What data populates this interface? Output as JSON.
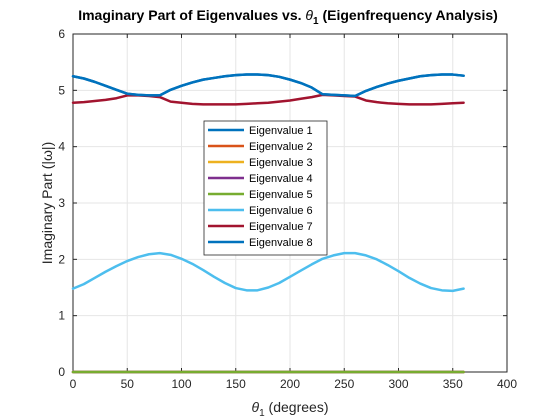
{
  "chart_data": {
    "type": "line",
    "title_main": "Imaginary Part of Eigenvalues vs. ",
    "title_theta": "θ",
    "title_sub": "1",
    "title_end": " (Eigenfrequency Analysis)",
    "xlabel_theta": "θ",
    "xlabel_sub": "1",
    "xlabel_rest": " (degrees)",
    "ylabel": "Imaginary Part (|ω|)",
    "xlim": [
      0,
      400
    ],
    "ylim": [
      0,
      6
    ],
    "xticks": [
      "0",
      "50",
      "100",
      "150",
      "200",
      "250",
      "300",
      "350",
      "400"
    ],
    "yticks": [
      "0",
      "1",
      "2",
      "3",
      "4",
      "5",
      "6"
    ],
    "grid": true,
    "legend_position": "center",
    "x": [
      0,
      10,
      20,
      30,
      40,
      50,
      60,
      70,
      80,
      90,
      100,
      110,
      120,
      130,
      140,
      150,
      160,
      170,
      180,
      190,
      200,
      210,
      220,
      230,
      240,
      250,
      260,
      270,
      280,
      290,
      300,
      310,
      320,
      330,
      340,
      350,
      360
    ],
    "series": [
      {
        "name": "Eigenvalue 1",
        "color": "#0072BD",
        "values": [
          5.25,
          5.21,
          5.15,
          5.08,
          5.01,
          4.94,
          4.92,
          4.91,
          4.91,
          5.01,
          5.08,
          5.14,
          5.19,
          5.22,
          5.25,
          5.27,
          5.28,
          5.28,
          5.27,
          5.24,
          5.19,
          5.13,
          5.05,
          4.93,
          4.92,
          4.91,
          4.9,
          4.99,
          5.06,
          5.12,
          5.17,
          5.21,
          5.25,
          5.27,
          5.28,
          5.28,
          5.26
        ]
      },
      {
        "name": "Eigenvalue 2",
        "color": "#D95319",
        "values": [
          0,
          0,
          0,
          0,
          0,
          0,
          0,
          0,
          0,
          0,
          0,
          0,
          0,
          0,
          0,
          0,
          0,
          0,
          0,
          0,
          0,
          0,
          0,
          0,
          0,
          0,
          0,
          0,
          0,
          0,
          0,
          0,
          0,
          0,
          0,
          0,
          0
        ]
      },
      {
        "name": "Eigenvalue 3",
        "color": "#EDB120",
        "values": [
          0,
          0,
          0,
          0,
          0,
          0,
          0,
          0,
          0,
          0,
          0,
          0,
          0,
          0,
          0,
          0,
          0,
          0,
          0,
          0,
          0,
          0,
          0,
          0,
          0,
          0,
          0,
          0,
          0,
          0,
          0,
          0,
          0,
          0,
          0,
          0,
          0
        ]
      },
      {
        "name": "Eigenvalue 4",
        "color": "#7E2F8E",
        "values": [
          0,
          0,
          0,
          0,
          0,
          0,
          0,
          0,
          0,
          0,
          0,
          0,
          0,
          0,
          0,
          0,
          0,
          0,
          0,
          0,
          0,
          0,
          0,
          0,
          0,
          0,
          0,
          0,
          0,
          0,
          0,
          0,
          0,
          0,
          0,
          0,
          0
        ]
      },
      {
        "name": "Eigenvalue 5",
        "color": "#77AC30",
        "values": [
          0,
          0,
          0,
          0,
          0,
          0,
          0,
          0,
          0,
          0,
          0,
          0,
          0,
          0,
          0,
          0,
          0,
          0,
          0,
          0,
          0,
          0,
          0,
          0,
          0,
          0,
          0,
          0,
          0,
          0,
          0,
          0,
          0,
          0,
          0,
          0,
          0
        ]
      },
      {
        "name": "Eigenvalue 6",
        "color": "#4DBEEE",
        "values": [
          1.48,
          1.56,
          1.67,
          1.78,
          1.88,
          1.97,
          2.04,
          2.09,
          2.11,
          2.08,
          2.01,
          1.92,
          1.81,
          1.69,
          1.58,
          1.49,
          1.45,
          1.45,
          1.5,
          1.58,
          1.69,
          1.8,
          1.91,
          2.01,
          2.07,
          2.11,
          2.11,
          2.07,
          2.0,
          1.9,
          1.79,
          1.67,
          1.57,
          1.49,
          1.45,
          1.44,
          1.48
        ]
      },
      {
        "name": "Eigenvalue 7",
        "color": "#A2142F",
        "values": [
          4.78,
          4.79,
          4.81,
          4.83,
          4.86,
          4.91,
          4.91,
          4.9,
          4.88,
          4.8,
          4.78,
          4.76,
          4.75,
          4.75,
          4.75,
          4.75,
          4.76,
          4.77,
          4.78,
          4.8,
          4.82,
          4.85,
          4.88,
          4.92,
          4.91,
          4.9,
          4.89,
          4.82,
          4.79,
          4.77,
          4.76,
          4.75,
          4.75,
          4.75,
          4.76,
          4.77,
          4.78
        ]
      },
      {
        "name": "Eigenvalue 8",
        "color": "#0072BD",
        "values": [
          5.25,
          5.21,
          5.15,
          5.08,
          5.01,
          4.94,
          4.92,
          4.91,
          4.91,
          5.01,
          5.08,
          5.14,
          5.19,
          5.22,
          5.25,
          5.27,
          5.28,
          5.28,
          5.27,
          5.24,
          5.19,
          5.13,
          5.05,
          4.93,
          4.92,
          4.91,
          4.9,
          4.99,
          5.06,
          5.12,
          5.17,
          5.21,
          5.25,
          5.27,
          5.28,
          5.28,
          5.26
        ]
      }
    ]
  }
}
